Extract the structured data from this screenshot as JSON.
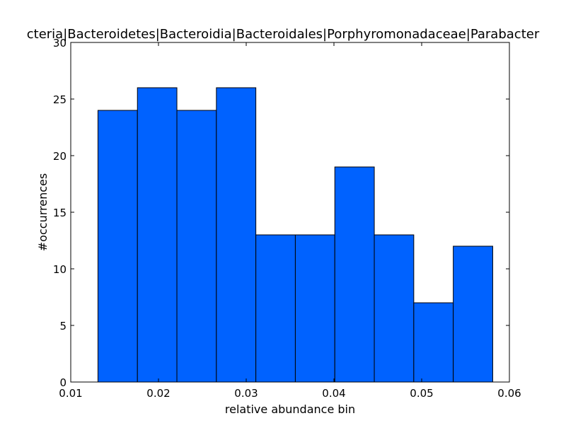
{
  "chart_data": {
    "type": "bar",
    "title": "k__Bacteria|p__Bacteroidetes|c__Bacteroidia|o__Bacteroidales|f__Porphyromonadaceae|g__Parabacteroides",
    "title_visible": "cteria|Bacteroidetes|Bacteroidia|Bacteroidales|Porphyromonadaceae|Parabacter",
    "xlabel": "relative abundance bin",
    "ylabel": "#occurrences",
    "xlim": [
      0.01,
      0.06
    ],
    "ylim": [
      0,
      30
    ],
    "x_ticks": [
      0.01,
      0.02,
      0.03,
      0.04,
      0.05,
      0.06
    ],
    "x_tick_labels": [
      "0.01",
      "0.02",
      "0.03",
      "0.04",
      "0.05",
      "0.06"
    ],
    "y_ticks": [
      0,
      5,
      10,
      15,
      20,
      25,
      30
    ],
    "y_tick_labels": [
      "0",
      "5",
      "10",
      "15",
      "20",
      "25",
      "30"
    ],
    "bin_edges": [
      0.0131,
      0.0176,
      0.0221,
      0.0266,
      0.0311,
      0.0356,
      0.0401,
      0.0446,
      0.0491,
      0.0536,
      0.0581
    ],
    "values": [
      24,
      26,
      24,
      26,
      13,
      13,
      19,
      13,
      7,
      12
    ],
    "bar_color": "#0062ff",
    "edge_color": "#000000",
    "grid": false
  }
}
